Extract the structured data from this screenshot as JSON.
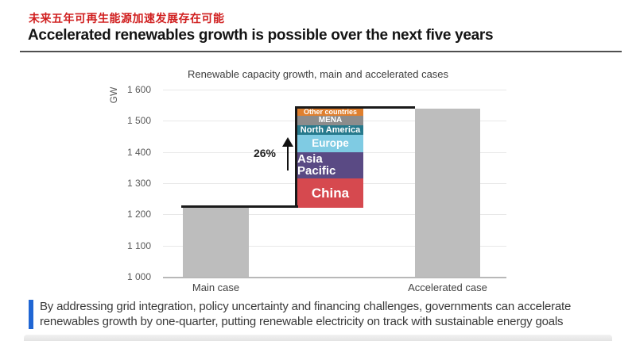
{
  "header": {
    "title_zh": "未来五年可再生能源加速发展存在可能",
    "title_en": "Accelerated renewables growth is possible over the next five years"
  },
  "chart": {
    "title": "Renewable capacity growth, main and accelerated cases",
    "y_axis_label": "GW"
  },
  "chart_data": {
    "type": "bar",
    "title": "Renewable capacity growth, main and accelerated cases",
    "ylabel": "GW",
    "ylim": [
      1000,
      1600
    ],
    "grid": true,
    "categories": [
      "Main case",
      "Accelerated case"
    ],
    "values": [
      1220,
      1540
    ],
    "bar_color": "#bdbdbd",
    "y_ticks": [
      {
        "value": 1600,
        "label": "1 600"
      },
      {
        "value": 1500,
        "label": "1 500"
      },
      {
        "value": 1400,
        "label": "1 400"
      },
      {
        "value": 1300,
        "label": "1 300"
      },
      {
        "value": 1200,
        "label": "1 200"
      },
      {
        "value": 1100,
        "label": "1 100"
      },
      {
        "value": 1000,
        "label": "1 000"
      }
    ],
    "increase": {
      "label": "26%",
      "total_gw": 320,
      "segments_top_to_bottom": [
        {
          "name": "Other countries",
          "value": 25,
          "color": "#df7f2e"
        },
        {
          "name": "MENA",
          "value": 30,
          "color": "#8c8c8c"
        },
        {
          "name": "North America",
          "value": 30,
          "color": "#26798c"
        },
        {
          "name": "Europe",
          "value": 55,
          "color": "#7fcbe3"
        },
        {
          "name": "Asia Pacific",
          "value": 85,
          "color": "#5a4a84"
        },
        {
          "name": "China",
          "value": 95,
          "color": "#d6494f"
        }
      ]
    }
  },
  "footer": {
    "note": "By addressing grid integration, policy uncertainty and financing challenges, governments can accelerate renewables growth by one-quarter, putting renewable electricity on track with sustainable energy goals"
  },
  "colors": {
    "title_red": "#d01f1f",
    "accent_blue": "#2066d4",
    "bar_gray": "#bdbdbd",
    "step_line_black": "#1a1a1a"
  }
}
